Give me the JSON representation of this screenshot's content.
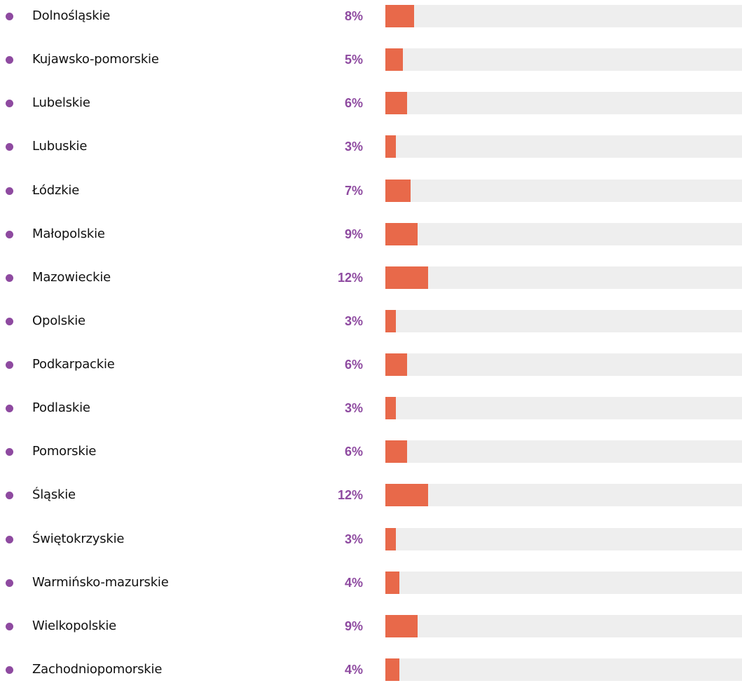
{
  "chart_data": {
    "type": "bar",
    "orientation": "horizontal",
    "unit": "%",
    "xlim": [
      0,
      100
    ],
    "categories": [
      "Dolnośląskie",
      "Kujawsko-pomorskie",
      "Lubelskie",
      "Lubuskie",
      "Łódzkie",
      "Małopolskie",
      "Mazowieckie",
      "Opolskie",
      "Podkarpackie",
      "Podlaskie",
      "Pomorskie",
      "Śląskie",
      "Świętokrzyskie",
      "Warmińsko-mazurskie",
      "Wielkopolskie",
      "Zachodniopomorskie"
    ],
    "values": [
      8,
      5,
      6,
      3,
      7,
      9,
      12,
      3,
      6,
      3,
      6,
      12,
      3,
      4,
      9,
      4
    ],
    "value_labels": [
      "8%",
      "5%",
      "6%",
      "3%",
      "7%",
      "9%",
      "12%",
      "3%",
      "6%",
      "3%",
      "6%",
      "12%",
      "3%",
      "4%",
      "9%",
      "4%"
    ],
    "title": "",
    "xlabel": "",
    "ylabel": "",
    "grid": false,
    "legend": "none"
  },
  "colors": {
    "bullet": "#8e4aa0",
    "value_text": "#8e4aa0",
    "bar_fill": "#e8694a",
    "bar_track": "#eeeeee",
    "label_text": "#111111",
    "background": "#ffffff"
  }
}
